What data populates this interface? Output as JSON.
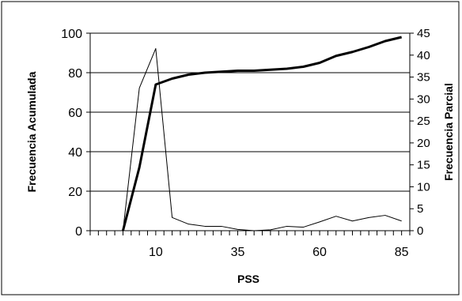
{
  "chart_data": {
    "type": "line",
    "xlabel": "PSS",
    "ylabel_left": "Frecuencia Acumulada",
    "ylabel_right": "Frecuencia Parcial",
    "x_tick_labels": [
      "10",
      "35",
      "60",
      "85"
    ],
    "x_tick_values": [
      10,
      35,
      60,
      85
    ],
    "xlim": [
      -10,
      87.5
    ],
    "ylim_left": [
      0,
      100
    ],
    "ylim_right": [
      0,
      45
    ],
    "y_left_ticks": [
      0,
      20,
      40,
      60,
      80,
      100
    ],
    "y_right_ticks": [
      0,
      5,
      10,
      15,
      20,
      25,
      30,
      35,
      40,
      45
    ],
    "grid": "horizontal",
    "x": [
      0,
      5,
      10,
      15,
      20,
      25,
      30,
      35,
      40,
      45,
      50,
      55,
      60,
      65,
      70,
      75,
      80,
      85
    ],
    "series": [
      {
        "axis": "left",
        "style": "thick",
        "values": [
          0,
          32,
          74,
          77,
          79,
          80,
          80.5,
          81,
          81,
          81.5,
          82,
          83,
          85,
          88.5,
          90.5,
          93,
          96,
          98
        ]
      },
      {
        "axis": "right",
        "style": "thin",
        "values": [
          0,
          32.5,
          41.5,
          3,
          1.5,
          1,
          1,
          0.3,
          0,
          0.2,
          1,
          0.8,
          2,
          3.3,
          2.2,
          3,
          3.5,
          2.2
        ]
      }
    ]
  }
}
